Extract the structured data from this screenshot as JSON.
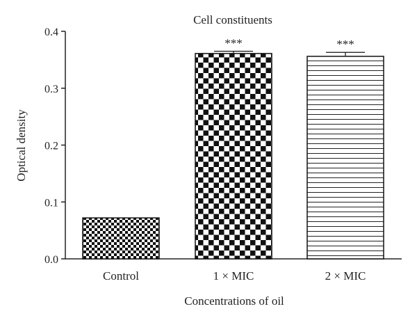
{
  "chart_data": {
    "type": "bar",
    "title": "Cell constituents",
    "xlabel": "Concentrations of oil",
    "ylabel": "Optical density",
    "categories": [
      "Control",
      "1 × MIC",
      "2 × MIC"
    ],
    "values": [
      0.072,
      0.361,
      0.356
    ],
    "errors": [
      0.0,
      0.004,
      0.007
    ],
    "annotations": [
      "",
      "***",
      "***"
    ],
    "patterns": [
      "fine-checker",
      "coarse-checker",
      "horizontal-lines"
    ],
    "ylim": [
      0.0,
      0.4
    ],
    "yticks": [
      0.0,
      0.1,
      0.2,
      0.3,
      0.4
    ],
    "ytick_labels": [
      "0.0",
      "0.1",
      "0.2",
      "0.3",
      "0.4"
    ],
    "grid": false,
    "legend": "none"
  }
}
